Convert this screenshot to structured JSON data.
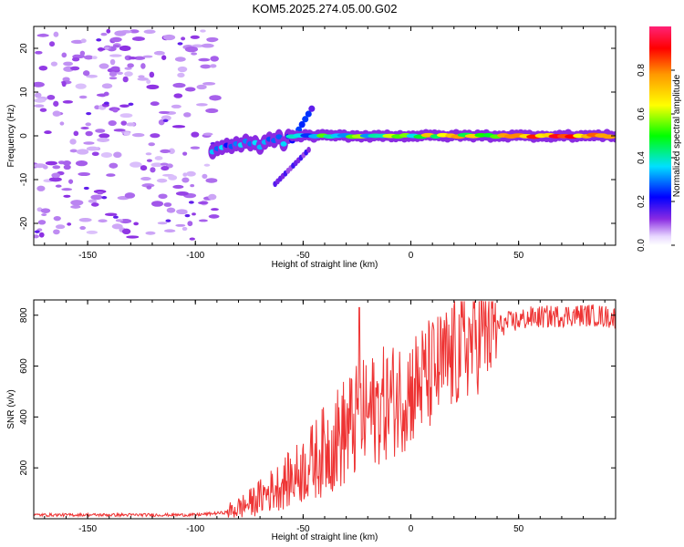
{
  "title": "KOM5.2025.274.05.00.G02",
  "chart_data": [
    {
      "type": "heatmap",
      "xlabel": "Height of straight line (km)",
      "ylabel": "Frequency (Hz)",
      "xlim": [
        -175,
        95
      ],
      "ylim": [
        -25,
        25
      ],
      "xticks": [
        -150,
        -100,
        -50,
        0,
        50
      ],
      "yticks": [
        -20,
        -10,
        0,
        10,
        20
      ],
      "colorbar": {
        "label": "Normalized spectral amplitude",
        "range": [
          0,
          1
        ],
        "ticks": [
          "0.0",
          "0.2",
          "0.4",
          "0.6",
          "0.8"
        ],
        "tick_values": [
          0,
          0.2,
          0.4,
          0.6,
          0.8
        ]
      },
      "features": [
        {
          "name": "noise-region",
          "x_range": [
            -175,
            -90
          ],
          "y_range": [
            -24,
            24
          ],
          "amplitude": 0.05
        },
        {
          "name": "onset-band",
          "x_range": [
            -92,
            -55
          ],
          "y_center": -3,
          "amplitude": 0.3
        },
        {
          "name": "upper-branch",
          "x_range": [
            -55,
            -45
          ],
          "y_range": [
            -1,
            7
          ],
          "amplitude": 0.25
        },
        {
          "name": "lower-branch",
          "x_range": [
            -63,
            -47
          ],
          "y_range": [
            -11,
            -3
          ],
          "amplitude": 0.15
        },
        {
          "name": "main-band",
          "x_range": [
            -55,
            95
          ],
          "y_center": 0,
          "amplitude": 0.95
        }
      ]
    },
    {
      "type": "line",
      "xlabel": "Height of straight line (km)",
      "ylabel": "SNR (v/v)",
      "xlim": [
        -175,
        95
      ],
      "ylim": [
        0,
        860
      ],
      "xticks": [
        -150,
        -100,
        -50,
        0,
        50
      ],
      "yticks": [
        200,
        400,
        600,
        800
      ],
      "series": [
        {
          "name": "SNR",
          "color": "#ee3333",
          "x": [
            -175,
            -150,
            -125,
            -100,
            -85,
            -75,
            -65,
            -55,
            -45,
            -35,
            -25,
            -15,
            -5,
            5,
            15,
            25,
            35,
            45,
            55,
            65,
            75,
            85,
            95
          ],
          "values": [
            15,
            15,
            15,
            15,
            25,
            60,
            110,
            160,
            230,
            310,
            380,
            440,
            480,
            540,
            600,
            680,
            740,
            770,
            790,
            795,
            800,
            800,
            790
          ]
        }
      ]
    }
  ]
}
